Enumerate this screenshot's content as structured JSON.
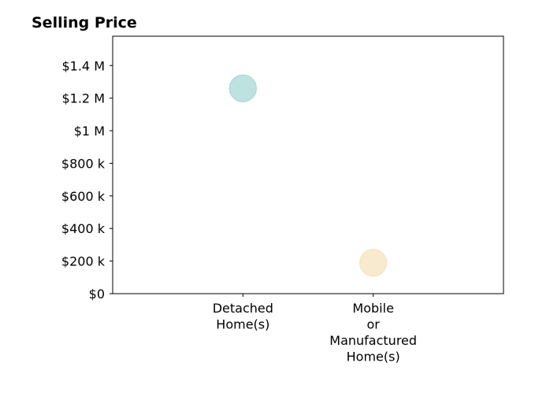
{
  "chart_data": {
    "type": "scatter",
    "title": "Selling Price",
    "xlabel": "",
    "ylabel": "",
    "categories": [
      "Detached Home(s)",
      "Mobile or Manufactured Home(s)"
    ],
    "category_label_lines": [
      [
        "Detached",
        "Home(s)"
      ],
      [
        "Mobile",
        "or",
        "Manufactured",
        "Home(s)"
      ]
    ],
    "values": [
      1260000,
      190000
    ],
    "point_colors": [
      "#a8d8d4",
      "#f5e3bd"
    ],
    "ylim": [
      0,
      1580000
    ],
    "yticks": [
      0,
      200000,
      400000,
      600000,
      800000,
      1000000,
      1200000,
      1400000
    ],
    "ytick_labels": [
      "$0",
      "$200 k",
      "$400 k",
      "$600 k",
      "$800 k",
      "$1 M",
      "$1.2 M",
      "$1.4 M"
    ],
    "grid": false,
    "legend": "none"
  }
}
